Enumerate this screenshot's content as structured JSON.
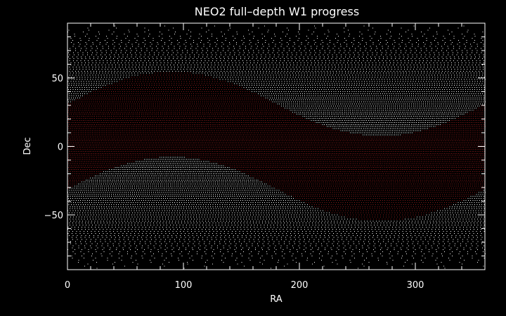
{
  "chart_data": {
    "type": "scatter",
    "title": "NEO2 full–depth W1 progress",
    "xlabel": "RA",
    "ylabel": "Dec",
    "xlim": [
      0,
      360
    ],
    "ylim": [
      -90,
      90
    ],
    "xticks": [
      0,
      100,
      200,
      300
    ],
    "xtick_labels": [
      "0",
      "100",
      "200",
      "300"
    ],
    "yticks": [
      -50,
      0,
      50
    ],
    "ytick_labels": [
      "−50",
      "0",
      "50"
    ],
    "x_minor_step": 20,
    "y_minor_step": 10,
    "grid": false,
    "legend": "none",
    "series": [
      {
        "role": "all_sky_grid",
        "color": "#ffffff",
        "ra_step_deg": 1.5,
        "dec_step_deg": 1.5,
        "dec_range": [
          -89,
          89
        ]
      },
      {
        "role": "full_depth_band",
        "color": "#8b1a1a",
        "band_center_curve": "ecliptic",
        "obliquity_deg": 23.4,
        "band_halfwidth_deg": 31,
        "ra_step_deg": 1.5,
        "dec_step_deg": 1.5
      }
    ]
  },
  "colors": {
    "background": "#000000",
    "axes": "#ffffff",
    "text": "#ffffff"
  }
}
